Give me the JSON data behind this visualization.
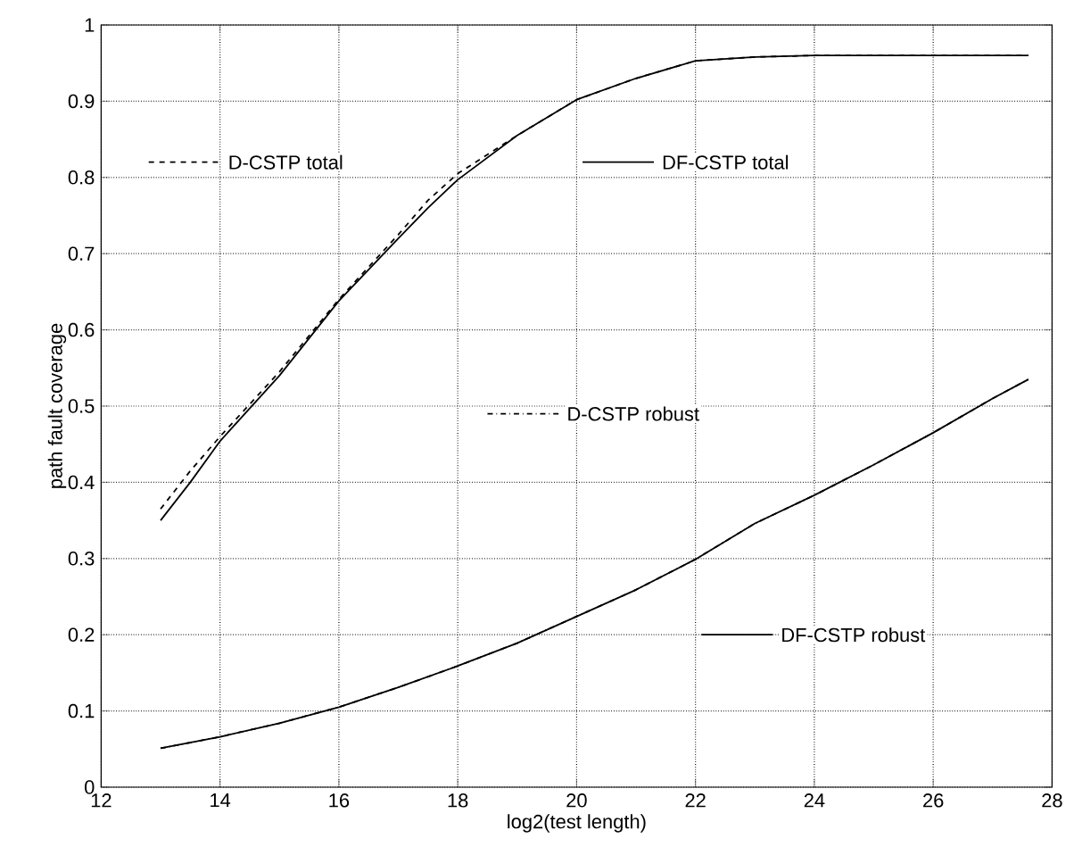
{
  "chart_data": {
    "type": "line",
    "xlabel": "log2(test length)",
    "ylabel": "path fault coverage",
    "xlim": [
      12,
      28
    ],
    "xticks": [
      12,
      14,
      16,
      18,
      20,
      22,
      24,
      26,
      28
    ],
    "ylim": [
      0,
      1
    ],
    "yticks": [
      0,
      0.1,
      0.2,
      0.3,
      0.4,
      0.5,
      0.6,
      0.7,
      0.8,
      0.9,
      1
    ],
    "grid": true,
    "legend": "left",
    "series": [
      {
        "name": "D-CSTP total",
        "color": "#000000",
        "line_style": "dashed",
        "x": [
          13,
          13.5,
          14,
          15,
          16,
          17,
          17.5,
          18,
          19,
          20,
          21,
          22,
          23,
          24,
          25,
          26,
          27,
          27.6
        ],
        "values": [
          0.365,
          0.415,
          0.46,
          0.545,
          0.64,
          0.725,
          0.77,
          0.805,
          0.855,
          0.902,
          0.93,
          0.953,
          0.958,
          0.96,
          0.96,
          0.96,
          0.96,
          0.96
        ]
      },
      {
        "name": "DF-CSTP total",
        "color": "#000000",
        "line_style": "solid",
        "x": [
          13,
          13.5,
          14,
          15,
          16,
          17,
          17.5,
          18,
          19,
          20,
          21,
          22,
          23,
          24,
          25,
          26,
          27,
          27.6
        ],
        "values": [
          0.35,
          0.4,
          0.454,
          0.54,
          0.638,
          0.72,
          0.76,
          0.797,
          0.855,
          0.902,
          0.93,
          0.953,
          0.958,
          0.96,
          0.96,
          0.96,
          0.96,
          0.96
        ]
      },
      {
        "name": "D-CSTP robust",
        "color": "#000000",
        "line_style": "dotted",
        "x": [
          13,
          14,
          15,
          16,
          17,
          18,
          19,
          20,
          21,
          22,
          23,
          24,
          25,
          26,
          27,
          27.6
        ],
        "values": [
          0.051,
          0.066,
          0.084,
          0.105,
          0.131,
          0.159,
          0.189,
          0.224,
          0.259,
          0.299,
          0.346,
          0.383,
          0.423,
          0.465,
          0.51,
          0.535
        ]
      },
      {
        "name": "DF-CSTP robust",
        "color": "#000000",
        "line_style": "solid",
        "x": [
          13,
          14,
          15,
          16,
          17,
          18,
          19,
          20,
          21,
          22,
          23,
          24,
          25,
          26,
          27,
          27.6
        ],
        "values": [
          0.051,
          0.066,
          0.084,
          0.105,
          0.131,
          0.159,
          0.189,
          0.224,
          0.259,
          0.299,
          0.346,
          0.383,
          0.423,
          0.465,
          0.51,
          0.535
        ]
      }
    ]
  }
}
